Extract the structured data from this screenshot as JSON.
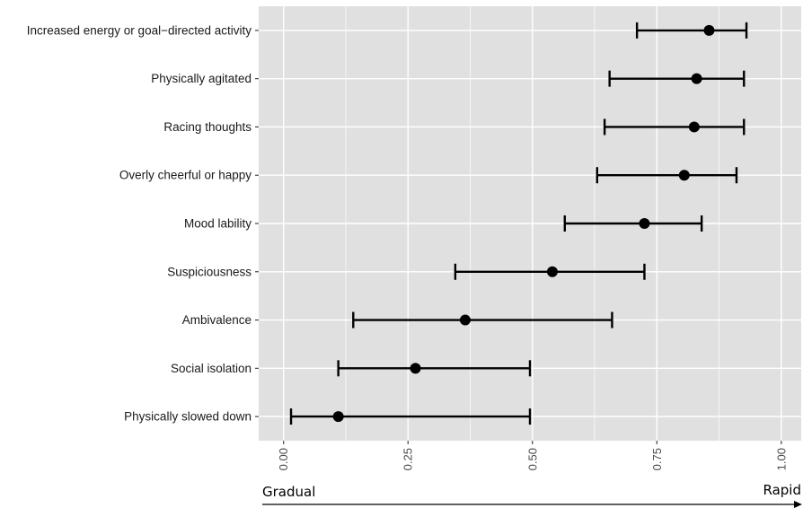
{
  "chart_data": {
    "type": "errorbar",
    "categories": [
      "Increased energy or goal−directed activity",
      "Physically agitated",
      "Racing thoughts",
      "Overly cheerful or happy",
      "Mood lability",
      "Suspiciousness",
      "Ambivalence",
      "Social isolation",
      "Physically slowed down"
    ],
    "estimates": [
      0.855,
      0.83,
      0.825,
      0.805,
      0.725,
      0.54,
      0.365,
      0.265,
      0.11
    ],
    "lower": [
      0.71,
      0.655,
      0.645,
      0.63,
      0.565,
      0.345,
      0.14,
      0.11,
      0.015
    ],
    "upper": [
      0.93,
      0.925,
      0.925,
      0.91,
      0.84,
      0.725,
      0.66,
      0.495,
      0.495
    ],
    "xlim": [
      -0.05,
      1.04
    ],
    "x_ticks": [
      "0.00",
      "0.25",
      "0.50",
      "0.75",
      "1.00"
    ],
    "x_tick_values": [
      0,
      0.25,
      0.5,
      0.75,
      1.0
    ],
    "grid": true,
    "axis_left_word": "Gradual",
    "axis_right_word": "Rapid",
    "colors": {
      "panel": "#e0e0e0",
      "gridline": "#ffffff",
      "mark": "#000000"
    }
  }
}
